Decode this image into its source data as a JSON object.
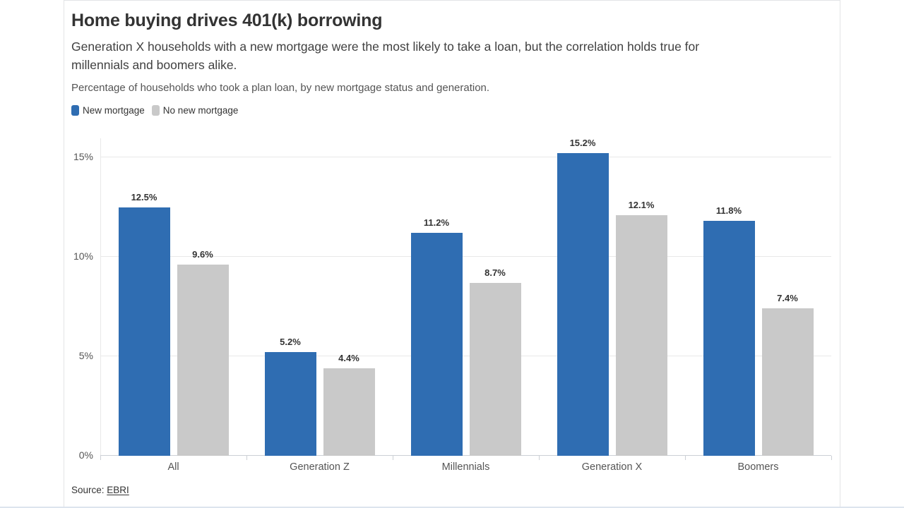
{
  "header": {
    "title": "Home buying drives 401(k) borrowing",
    "subtitle_lines": [
      "Generation X households with a new mortgage were the most likely to take a loan, but the correlation holds true for",
      "millennials and boomers alike."
    ],
    "description": "Percentage of households who took a plan loan, by new mortgage status and generation."
  },
  "colors": {
    "blue": "#2f6db2",
    "gray": "#c9c9c9"
  },
  "chart_data": {
    "type": "bar",
    "title": "Home buying drives 401(k) borrowing",
    "xlabel": "",
    "ylabel": "",
    "categories": [
      "All",
      "Generation Z",
      "Millennials",
      "Generation X",
      "Boomers"
    ],
    "series": [
      {
        "name": "New mortgage",
        "color_key": "blue",
        "values": [
          12.5,
          5.2,
          11.2,
          15.2,
          11.8
        ]
      },
      {
        "name": "No new mortgage",
        "color_key": "gray",
        "values": [
          9.6,
          4.4,
          8.7,
          12.1,
          7.4
        ]
      }
    ],
    "value_suffix": "%",
    "y_ticks": [
      {
        "value": 0,
        "label": "0%"
      },
      {
        "value": 5,
        "label": "5%"
      },
      {
        "value": 10,
        "label": "10%"
      },
      {
        "value": 15,
        "label": "15%"
      }
    ],
    "ylim": [
      0,
      16
    ],
    "grid": true,
    "legend_position": "top-left"
  },
  "footer": {
    "source_label": "Source:",
    "source_link": "EBRI"
  }
}
